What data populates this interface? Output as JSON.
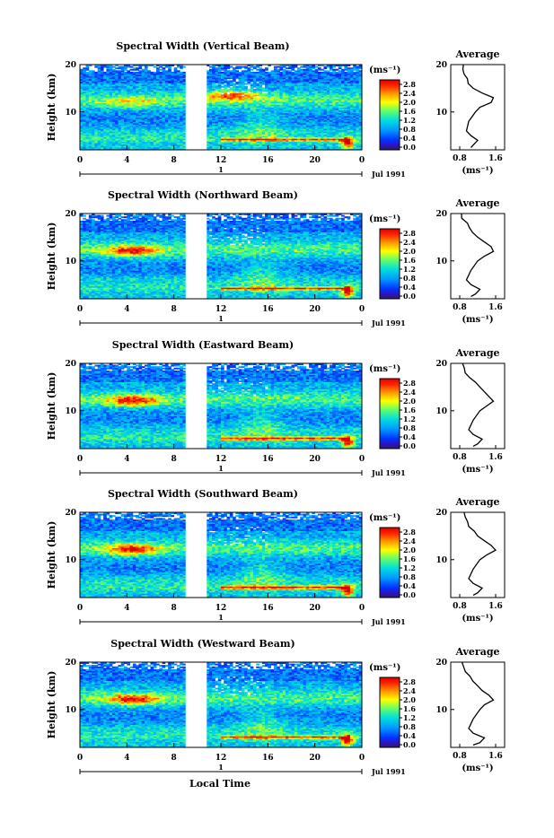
{
  "global": {
    "xlabel": "Local Time",
    "ylabel": "Height (km)",
    "unit_label": "(ms⁻¹)",
    "average_title": "Average",
    "date_label": "Jul 1991",
    "day_marker": "1"
  },
  "chart_data": [
    {
      "type": "heatmap",
      "title": "Spectral Width (Vertical Beam)",
      "xlabel": "",
      "ylabel": "Height (km)",
      "xlim": [
        0,
        24
      ],
      "ylim": [
        2,
        20
      ],
      "x_ticks": [
        "0",
        "4",
        "8",
        "12",
        "16",
        "20",
        "0"
      ],
      "y_ticks": [
        "20",
        "10"
      ],
      "data_gap_hours": [
        9,
        10.8
      ],
      "colorbar": {
        "label": "(ms⁻¹)",
        "ticks": [
          "2.8",
          "2.4",
          "2.0",
          "1.6",
          "1.2",
          "0.8",
          "0.4",
          "0.0"
        ],
        "range": [
          0,
          2.8
        ]
      },
      "profile": {
        "title": "Average",
        "x_ticks": [
          "0.8",
          "1.6"
        ],
        "y_ticks": [
          "20",
          "10"
        ],
        "xlim": [
          0.8,
          1.6
        ],
        "heights": [
          2.5,
          3,
          4,
          5,
          6,
          8,
          10,
          11,
          12,
          13,
          14,
          15,
          16,
          17,
          18,
          19,
          20
        ],
        "values": [
          1.05,
          1.1,
          1.2,
          1.05,
          0.95,
          1.0,
          1.15,
          1.25,
          1.5,
          1.55,
          1.3,
          1.1,
          1.0,
          0.95,
          0.9,
          0.85,
          0.88
        ]
      }
    },
    {
      "type": "heatmap",
      "title": "Spectral Width (Northward Beam)",
      "xlabel": "",
      "ylabel": "Height (km)",
      "xlim": [
        0,
        24
      ],
      "ylim": [
        2,
        20
      ],
      "x_ticks": [
        "0",
        "4",
        "8",
        "12",
        "16",
        "20",
        "0"
      ],
      "y_ticks": [
        "20",
        "10"
      ],
      "data_gap_hours": [
        9,
        10.8
      ],
      "colorbar": {
        "label": "(ms⁻¹)",
        "ticks": [
          "2.8",
          "2.4",
          "2.0",
          "1.6",
          "1.2",
          "0.8",
          "0.4",
          "0.0"
        ],
        "range": [
          0,
          2.8
        ]
      },
      "profile": {
        "title": "Average",
        "x_ticks": [
          "0.8",
          "1.6"
        ],
        "y_ticks": [
          "20",
          "10"
        ],
        "xlim": [
          0.8,
          1.6
        ],
        "heights": [
          2.5,
          3,
          4,
          5,
          6,
          8,
          10,
          11,
          12,
          13,
          14,
          15,
          16,
          17,
          18,
          19,
          20
        ],
        "values": [
          1.05,
          1.15,
          1.25,
          1.05,
          0.95,
          1.05,
          1.2,
          1.35,
          1.55,
          1.5,
          1.35,
          1.2,
          1.1,
          1.0,
          0.95,
          0.88,
          0.85
        ]
      }
    },
    {
      "type": "heatmap",
      "title": "Spectral Width (Eastward Beam)",
      "xlabel": "",
      "ylabel": "Height (km)",
      "xlim": [
        0,
        24
      ],
      "ylim": [
        2,
        20
      ],
      "x_ticks": [
        "0",
        "4",
        "8",
        "12",
        "16",
        "20",
        "0"
      ],
      "y_ticks": [
        "20",
        "10"
      ],
      "data_gap_hours": [
        9,
        10.8
      ],
      "colorbar": {
        "label": "(ms⁻¹)",
        "ticks": [
          "2.8",
          "2.4",
          "2.0",
          "1.6",
          "1.2",
          "0.8",
          "0.4",
          "0.0"
        ],
        "range": [
          0,
          2.8
        ]
      },
      "profile": {
        "title": "Average",
        "x_ticks": [
          "0.8",
          "1.6"
        ],
        "y_ticks": [
          "20",
          "10"
        ],
        "xlim": [
          0.8,
          1.6
        ],
        "heights": [
          2.5,
          3,
          4,
          5,
          6,
          8,
          10,
          11,
          12,
          13,
          14,
          15,
          16,
          17,
          18,
          19,
          20
        ],
        "values": [
          1.1,
          1.2,
          1.3,
          1.1,
          1.0,
          1.1,
          1.25,
          1.4,
          1.55,
          1.45,
          1.35,
          1.25,
          1.15,
          1.05,
          0.95,
          0.9,
          0.88
        ]
      }
    },
    {
      "type": "heatmap",
      "title": "Spectral Width (Southward Beam)",
      "xlabel": "",
      "ylabel": "Height (km)",
      "xlim": [
        0,
        24
      ],
      "ylim": [
        2,
        20
      ],
      "x_ticks": [
        "0",
        "4",
        "8",
        "12",
        "16",
        "20",
        "0"
      ],
      "y_ticks": [
        "20",
        "10"
      ],
      "data_gap_hours": [
        9,
        10.8
      ],
      "colorbar": {
        "label": "(ms⁻¹)",
        "ticks": [
          "2.8",
          "2.4",
          "2.0",
          "1.6",
          "1.2",
          "0.8",
          "0.4",
          "0.0"
        ],
        "range": [
          0,
          2.8
        ]
      },
      "profile": {
        "title": "Average",
        "x_ticks": [
          "0.8",
          "1.6"
        ],
        "y_ticks": [
          "20",
          "10"
        ],
        "xlim": [
          0.8,
          1.6
        ],
        "heights": [
          2.5,
          3,
          4,
          5,
          6,
          8,
          10,
          11,
          12,
          13,
          14,
          15,
          16,
          17,
          18,
          19,
          20
        ],
        "values": [
          1.1,
          1.2,
          1.3,
          1.1,
          1.0,
          1.1,
          1.25,
          1.4,
          1.6,
          1.5,
          1.35,
          1.2,
          1.1,
          1.0,
          0.95,
          0.9,
          0.86
        ]
      }
    },
    {
      "type": "heatmap",
      "title": "Spectral Width (Westward Beam)",
      "xlabel": "Local Time",
      "ylabel": "Height (km)",
      "xlim": [
        0,
        24
      ],
      "ylim": [
        2,
        20
      ],
      "x_ticks": [
        "0",
        "4",
        "8",
        "12",
        "16",
        "20",
        "0"
      ],
      "y_ticks": [
        "20",
        "10"
      ],
      "data_gap_hours": [
        9,
        10.8
      ],
      "colorbar": {
        "label": "(ms⁻¹)",
        "ticks": [
          "2.8",
          "2.4",
          "2.0",
          "1.6",
          "1.2",
          "0.8",
          "0.4",
          "0.0"
        ],
        "range": [
          0,
          2.8
        ]
      },
      "profile": {
        "title": "Average",
        "x_ticks": [
          "0.8",
          "1.6"
        ],
        "y_ticks": [
          "20",
          "10"
        ],
        "xlim": [
          0.8,
          1.6
        ],
        "heights": [
          2.5,
          3,
          4,
          5,
          6,
          8,
          10,
          11,
          12,
          13,
          14,
          15,
          16,
          17,
          18,
          19,
          20
        ],
        "values": [
          1.1,
          1.25,
          1.35,
          1.1,
          1.0,
          1.1,
          1.25,
          1.35,
          1.55,
          1.45,
          1.3,
          1.2,
          1.1,
          1.0,
          0.9,
          0.88,
          0.85
        ]
      }
    }
  ]
}
